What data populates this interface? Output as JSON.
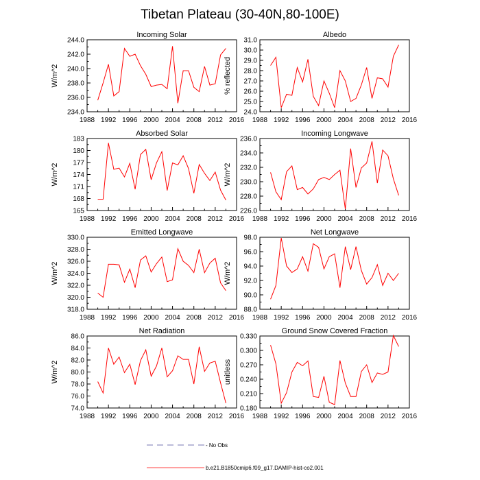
{
  "figure": {
    "title": "Tibetan Plateau (30-40N,80-100E)"
  },
  "legend": {
    "entries": [
      {
        "label": "- No Obs",
        "style": "dashed",
        "color": "#4a4a9a"
      },
      {
        "label": "b.e21.B1850cmip6.f09_g17.DAMIP-hist-co2.001",
        "style": "solid",
        "color": "#ff0000"
      }
    ]
  },
  "chart_data": [
    {
      "type": "line",
      "title": "Incoming Solar",
      "ylabel": "W/m^2",
      "xlim": [
        1988,
        2016
      ],
      "xticks": [
        "1988",
        "1992",
        "1996",
        "2000",
        "2004",
        "2008",
        "2012",
        "2016"
      ],
      "ylim": [
        234,
        244
      ],
      "yticks": [
        "234.0",
        "236.0",
        "238.0",
        "240.0",
        "242.0",
        "244.0"
      ],
      "x": [
        1990,
        1991,
        1992,
        1993,
        1994,
        1995,
        1996,
        1997,
        1998,
        1999,
        2000,
        2001,
        2002,
        2003,
        2004,
        2005,
        2006,
        2007,
        2008,
        2009,
        2010,
        2011,
        2012,
        2013,
        2014
      ],
      "series": [
        {
          "color": "#ff0000",
          "values": [
            235.6,
            238.0,
            240.6,
            236.2,
            236.8,
            242.8,
            241.7,
            242.0,
            240.4,
            239.2,
            237.5,
            237.7,
            237.8,
            237.2,
            243.1,
            235.2,
            239.7,
            239.7,
            237.4,
            236.8,
            240.3,
            237.7,
            237.9,
            241.9,
            242.8
          ]
        }
      ]
    },
    {
      "type": "line",
      "title": "Albedo",
      "ylabel": "% reflected",
      "xlim": [
        1988,
        2016
      ],
      "xticks": [
        "1988",
        "1992",
        "1996",
        "2000",
        "2004",
        "2008",
        "2012",
        "2016"
      ],
      "ylim": [
        24,
        31
      ],
      "yticks": [
        "24.0",
        "25.0",
        "26.0",
        "27.0",
        "28.0",
        "29.0",
        "30.0",
        "31.0"
      ],
      "x": [
        1990,
        1991,
        1992,
        1993,
        1994,
        1995,
        1996,
        1997,
        1998,
        1999,
        2000,
        2001,
        2002,
        2003,
        2004,
        2005,
        2006,
        2007,
        2008,
        2009,
        2010,
        2011,
        2012,
        2013,
        2014
      ],
      "series": [
        {
          "color": "#ff0000",
          "values": [
            28.5,
            29.3,
            24.4,
            25.7,
            25.6,
            28.3,
            26.9,
            29.1,
            25.5,
            24.6,
            27.0,
            25.8,
            24.4,
            28.0,
            27.0,
            25.0,
            25.3,
            26.6,
            28.3,
            25.3,
            27.3,
            27.2,
            26.4,
            29.4,
            30.5
          ]
        }
      ]
    },
    {
      "type": "line",
      "title": "Absorbed Solar",
      "ylabel": "W/m^2",
      "xlim": [
        1988,
        2016
      ],
      "xticks": [
        "1988",
        "1992",
        "1996",
        "2000",
        "2004",
        "2008",
        "2012",
        "2016"
      ],
      "ylim": [
        165,
        183
      ],
      "yticks": [
        "165",
        "168",
        "171",
        "174",
        "177",
        "180",
        "183"
      ],
      "x": [
        1990,
        1991,
        1992,
        1993,
        1994,
        1995,
        1996,
        1997,
        1998,
        1999,
        2000,
        2001,
        2002,
        2003,
        2004,
        2005,
        2006,
        2007,
        2008,
        2009,
        2010,
        2011,
        2012,
        2013,
        2014
      ],
      "series": [
        {
          "color": "#ff0000",
          "values": [
            167.8,
            167.8,
            181.9,
            175.3,
            175.6,
            173.4,
            176.8,
            170.3,
            179.0,
            180.3,
            172.7,
            176.9,
            179.7,
            170.0,
            176.9,
            176.4,
            178.7,
            175.5,
            169.3,
            176.5,
            174.3,
            172.5,
            174.6,
            170.1,
            167.6
          ]
        }
      ]
    },
    {
      "type": "line",
      "title": "Incoming Longwave",
      "ylabel": "W/m^2",
      "xlim": [
        1988,
        2016
      ],
      "xticks": [
        "1988",
        "1992",
        "1996",
        "2000",
        "2004",
        "2008",
        "2012",
        "2016"
      ],
      "ylim": [
        226,
        236
      ],
      "yticks": [
        "226.0",
        "228.0",
        "230.0",
        "232.0",
        "234.0",
        "236.0"
      ],
      "x": [
        1990,
        1991,
        1992,
        1993,
        1994,
        1995,
        1996,
        1997,
        1998,
        1999,
        2000,
        2001,
        2002,
        2003,
        2004,
        2005,
        2006,
        2007,
        2008,
        2009,
        2010,
        2011,
        2012,
        2013,
        2014
      ],
      "series": [
        {
          "color": "#ff0000",
          "values": [
            231.3,
            228.6,
            227.5,
            231.4,
            232.2,
            228.9,
            229.2,
            228.3,
            229.0,
            230.3,
            230.6,
            230.3,
            231.0,
            231.6,
            226.2,
            234.6,
            229.2,
            231.9,
            232.6,
            235.6,
            229.8,
            234.4,
            233.6,
            230.4,
            228.1
          ]
        }
      ]
    },
    {
      "type": "line",
      "title": "Emitted Longwave",
      "ylabel": "W/m^2",
      "xlim": [
        1988,
        2016
      ],
      "xticks": [
        "1988",
        "1992",
        "1996",
        "2000",
        "2004",
        "2008",
        "2012",
        "2016"
      ],
      "ylim": [
        318,
        330
      ],
      "yticks": [
        "318.0",
        "320.0",
        "322.0",
        "324.0",
        "326.0",
        "328.0",
        "330.0"
      ],
      "x": [
        1990,
        1991,
        1992,
        1993,
        1994,
        1995,
        1996,
        1997,
        1998,
        1999,
        2000,
        2001,
        2002,
        2003,
        2004,
        2005,
        2006,
        2007,
        2008,
        2009,
        2010,
        2011,
        2012,
        2013,
        2014
      ],
      "series": [
        {
          "color": "#ff0000",
          "values": [
            320.7,
            320.0,
            325.5,
            325.5,
            325.4,
            322.5,
            324.7,
            321.6,
            326.2,
            326.9,
            324.2,
            325.6,
            326.7,
            322.6,
            322.9,
            328.1,
            326.0,
            325.3,
            324.1,
            328.0,
            324.1,
            325.7,
            326.5,
            322.4,
            321.1
          ]
        }
      ]
    },
    {
      "type": "line",
      "title": "Net Longwave",
      "ylabel": "W/m^2",
      "xlim": [
        1988,
        2016
      ],
      "xticks": [
        "1988",
        "1992",
        "1996",
        "2000",
        "2004",
        "2008",
        "2012",
        "2016"
      ],
      "ylim": [
        88,
        98
      ],
      "yticks": [
        "88.0",
        "90.0",
        "92.0",
        "94.0",
        "96.0",
        "98.0"
      ],
      "x": [
        1990,
        1991,
        1992,
        1993,
        1994,
        1995,
        1996,
        1997,
        1998,
        1999,
        2000,
        2001,
        2002,
        2003,
        2004,
        2005,
        2006,
        2007,
        2008,
        2009,
        2010,
        2011,
        2012,
        2013,
        2014
      ],
      "series": [
        {
          "color": "#ff0000",
          "values": [
            89.4,
            91.3,
            97.9,
            94.0,
            93.1,
            93.6,
            95.3,
            93.3,
            97.1,
            96.6,
            93.6,
            95.3,
            95.7,
            91.0,
            96.7,
            93.5,
            96.7,
            93.4,
            91.5,
            92.4,
            94.2,
            91.3,
            93.0,
            92.0,
            93.0
          ]
        }
      ]
    },
    {
      "type": "line",
      "title": "Net Radiation",
      "ylabel": "W/m^2",
      "xlim": [
        1988,
        2016
      ],
      "xticks": [
        "1988",
        "1992",
        "1996",
        "2000",
        "2004",
        "2008",
        "2012",
        "2016"
      ],
      "ylim": [
        74,
        86
      ],
      "yticks": [
        "74.0",
        "76.0",
        "78.0",
        "80.0",
        "82.0",
        "84.0",
        "86.0"
      ],
      "x": [
        1990,
        1991,
        1992,
        1993,
        1994,
        1995,
        1996,
        1997,
        1998,
        1999,
        2000,
        2001,
        2002,
        2003,
        2004,
        2005,
        2006,
        2007,
        2008,
        2009,
        2010,
        2011,
        2012,
        2013,
        2014
      ],
      "series": [
        {
          "color": "#ff0000",
          "values": [
            78.4,
            76.5,
            84.0,
            81.3,
            82.5,
            79.9,
            81.3,
            77.9,
            81.9,
            83.7,
            79.3,
            81.0,
            84.0,
            79.2,
            80.2,
            82.7,
            82.1,
            82.1,
            78.0,
            84.2,
            80.1,
            81.5,
            81.8,
            78.2,
            74.8
          ]
        }
      ]
    },
    {
      "type": "line",
      "title": "Ground Snow Covered Fraction",
      "ylabel": "unitless",
      "xlim": [
        1988,
        2016
      ],
      "xticks": [
        "1988",
        "1992",
        "1996",
        "2000",
        "2004",
        "2008",
        "2012",
        "2016"
      ],
      "ylim": [
        0.18,
        0.33
      ],
      "yticks": [
        "0.180",
        "0.210",
        "0.240",
        "0.270",
        "0.300",
        "0.330"
      ],
      "x": [
        1990,
        1991,
        1992,
        1993,
        1994,
        1995,
        1996,
        1997,
        1998,
        1999,
        2000,
        2001,
        2002,
        2003,
        2004,
        2005,
        2006,
        2007,
        2008,
        2009,
        2010,
        2011,
        2012,
        2013,
        2014
      ],
      "series": [
        {
          "color": "#ff0000",
          "values": [
            0.311,
            0.272,
            0.19,
            0.212,
            0.255,
            0.275,
            0.268,
            0.278,
            0.204,
            0.202,
            0.246,
            0.192,
            0.187,
            0.279,
            0.232,
            0.204,
            0.204,
            0.256,
            0.27,
            0.233,
            0.253,
            0.25,
            0.255,
            0.331,
            0.308
          ]
        }
      ]
    }
  ]
}
